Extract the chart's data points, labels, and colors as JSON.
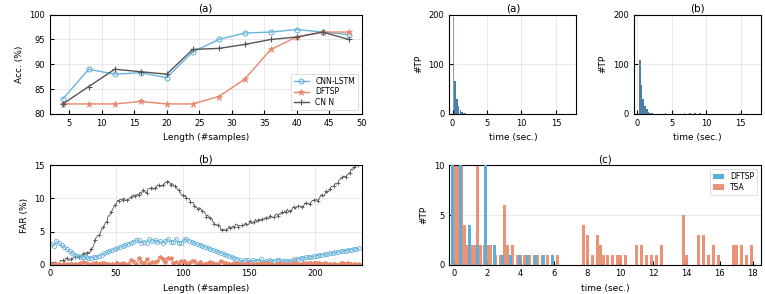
{
  "left_top": {
    "title": "(a)",
    "xlabel": "Length (#samples)",
    "ylabel": "Acc. (%)",
    "ylim": [
      80,
      100
    ],
    "xlim": [
      2,
      50
    ],
    "xticks": [
      5,
      10,
      15,
      20,
      25,
      30,
      35,
      40,
      45,
      50
    ],
    "yticks": [
      80,
      85,
      90,
      95,
      100
    ],
    "cnn_lstm_x": [
      4,
      8,
      12,
      16,
      20,
      24,
      28,
      32,
      36,
      40,
      44,
      48
    ],
    "cnn_lstm_y": [
      83.0,
      89.0,
      88.0,
      88.3,
      87.3,
      92.5,
      95.0,
      96.3,
      96.5,
      97.0,
      96.5,
      96.0
    ],
    "dftsp_x": [
      4,
      8,
      12,
      16,
      20,
      24,
      28,
      32,
      36,
      40,
      44,
      48
    ],
    "dftsp_y": [
      82.0,
      82.0,
      82.0,
      82.5,
      82.0,
      82.0,
      83.5,
      87.0,
      93.0,
      95.5,
      96.5,
      96.5
    ],
    "cnn_x": [
      4,
      8,
      12,
      16,
      20,
      24,
      28,
      32,
      36,
      40,
      44,
      48
    ],
    "cnn_y": [
      82.0,
      85.5,
      89.0,
      88.5,
      88.0,
      93.0,
      93.2,
      94.0,
      95.0,
      95.5,
      96.5,
      95.0
    ],
    "cnn_lstm_color": "#6ab4dc",
    "dftsp_color": "#e8876a",
    "cnn_color": "#555555",
    "legend_labels": [
      "CNN-LSTM",
      "DFTSP",
      "CN N"
    ]
  },
  "left_bottom": {
    "title": "(b)",
    "xlabel": "Length (#samples)",
    "ylabel": "FAR (%)",
    "ylim": [
      0,
      15
    ],
    "xlim": [
      0,
      235
    ],
    "xticks": [
      0,
      50,
      100,
      150,
      200
    ],
    "yticks": [
      0,
      5,
      10,
      15
    ],
    "cnn_lstm_color": "#6ab4dc",
    "dftsp_color": "#e8876a",
    "cnn_color": "#555555"
  },
  "right_top_a": {
    "title": "(a)",
    "xlabel": "time (sec.)",
    "ylabel": "#TP",
    "ylim": [
      0,
      200
    ],
    "xlim": [
      -0.5,
      18
    ],
    "xticks": [
      0,
      5,
      10,
      15
    ],
    "yticks": [
      0,
      100,
      200
    ],
    "color": "#4a7fa8"
  },
  "right_top_b": {
    "title": "(b)",
    "xlabel": "time (sec.)",
    "ylabel": "#TP",
    "ylim": [
      0,
      200
    ],
    "xlim": [
      -0.5,
      18
    ],
    "xticks": [
      0,
      5,
      10,
      15
    ],
    "yticks": [
      0,
      100,
      200
    ],
    "color": "#4a7fa8"
  },
  "right_bottom": {
    "title": "(c)",
    "xlabel": "time (sec.)",
    "ylabel": "#TP",
    "ylim": [
      0,
      10
    ],
    "xlim": [
      -0.3,
      18.5
    ],
    "xticks": [
      0,
      2,
      4,
      6,
      8,
      10,
      12,
      14,
      16,
      18
    ],
    "yticks": [
      0,
      5,
      10
    ],
    "dftsp_color": "#5bafd6",
    "tsa_color": "#e8876a",
    "legend_labels": [
      "DFTSP",
      "TSA"
    ]
  },
  "background": "#ffffff",
  "grid_color": "#cccccc",
  "grid_alpha": 0.6
}
